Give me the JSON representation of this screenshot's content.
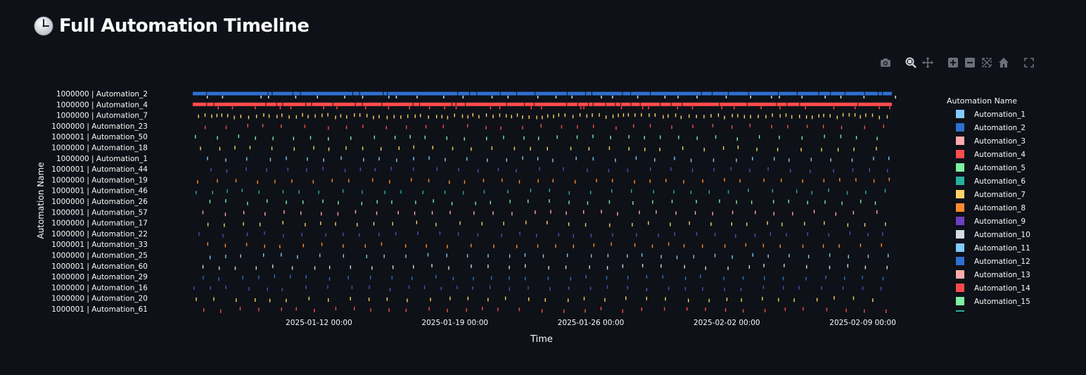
{
  "page": {
    "title": "Full Automation Timeline",
    "icon": "clock-icon"
  },
  "modebar": {
    "buttons": [
      "camera-icon",
      "zoom-icon",
      "pan-icon",
      "zoom-in-icon",
      "zoom-out-icon",
      "autoscale-icon",
      "reset-axes-icon",
      "fullscreen-icon"
    ]
  },
  "chart_data": {
    "type": "scatter",
    "title": "",
    "xlabel": "Time",
    "ylabel": "Automation Name",
    "xlim": [
      "2025-01-05 12:00",
      "2025-02-10 12:00"
    ],
    "x_ticks": [
      "2025-01-12 00:00",
      "2025-01-19 00:00",
      "2025-01-26 00:00",
      "2025-02-02 00:00",
      "2025-02-09 00:00"
    ],
    "y_categories": [
      "1000000 | Automation_2",
      "1000000 | Automation_4",
      "1000000 | Automation_7",
      "1000000 | Automation_23",
      "1000001 | Automation_50",
      "1000000 | Automation_18",
      "1000000 | Automation_1",
      "1000001 | Automation_44",
      "1000000 | Automation_19",
      "1000001 | Automation_46",
      "1000000 | Automation_26",
      "1000001 | Automation_57",
      "1000000 | Automation_17",
      "1000000 | Automation_22",
      "1000001 | Automation_33",
      "1000000 | Automation_25",
      "1000001 | Automation_60",
      "1000000 | Automation_29",
      "1000000 | Automation_16",
      "1000000 | Automation_20",
      "1000001 | Automation_61"
    ],
    "row_colors": [
      "#2f6fd1",
      "#ff4b4b",
      "#ffd16a",
      "#ff4b4b",
      "#7defa1",
      "#ffd16a",
      "#83c9ff",
      "#6d3fc0",
      "#ff8c2e",
      "#29b09d",
      "#7defa1",
      "#ffabab",
      "#ffd16a",
      "#6d3fc0",
      "#ff8c2e",
      "#83c9ff",
      "#d5dae5",
      "#2f6fd1",
      "#6d3fc0",
      "#ffd16a",
      "#ff4b4b"
    ],
    "row_runs_per_day": [
      48,
      48,
      3,
      1,
      1,
      1,
      1,
      1,
      1,
      1,
      1,
      1,
      1,
      1,
      1,
      1,
      1,
      1,
      1,
      1,
      1
    ],
    "legend": {
      "title": "Automation Name",
      "placement": "right",
      "entries": [
        {
          "name": "Automation_1",
          "color": "#83c9ff"
        },
        {
          "name": "Automation_2",
          "color": "#2f6fd1"
        },
        {
          "name": "Automation_3",
          "color": "#ffabab"
        },
        {
          "name": "Automation_4",
          "color": "#ff4b4b"
        },
        {
          "name": "Automation_5",
          "color": "#7defa1"
        },
        {
          "name": "Automation_6",
          "color": "#29b09d"
        },
        {
          "name": "Automation_7",
          "color": "#ffd16a"
        },
        {
          "name": "Automation_8",
          "color": "#ff8c2e"
        },
        {
          "name": "Automation_9",
          "color": "#6d3fc0"
        },
        {
          "name": "Automation_10",
          "color": "#d5dae5"
        },
        {
          "name": "Automation_11",
          "color": "#83c9ff"
        },
        {
          "name": "Automation_12",
          "color": "#2f6fd1"
        },
        {
          "name": "Automation_13",
          "color": "#ffabab"
        },
        {
          "name": "Automation_14",
          "color": "#ff4b4b"
        },
        {
          "name": "Automation_15",
          "color": "#7defa1"
        }
      ]
    }
  }
}
